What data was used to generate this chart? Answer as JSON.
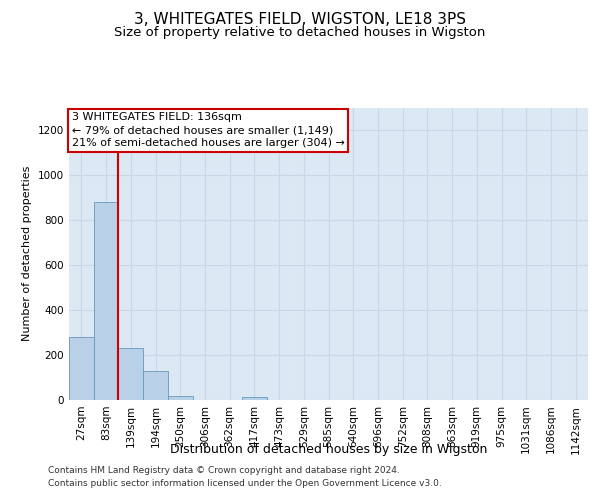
{
  "title": "3, WHITEGATES FIELD, WIGSTON, LE18 3PS",
  "subtitle": "Size of property relative to detached houses in Wigston",
  "xlabel": "Distribution of detached houses by size in Wigston",
  "ylabel": "Number of detached properties",
  "bar_values": [
    280,
    880,
    230,
    130,
    20,
    0,
    0,
    15,
    0,
    0,
    0,
    0,
    0,
    0,
    0,
    0,
    0,
    0,
    0,
    0,
    0
  ],
  "bin_labels": [
    "27sqm",
    "83sqm",
    "139sqm",
    "194sqm",
    "250sqm",
    "306sqm",
    "362sqm",
    "417sqm",
    "473sqm",
    "529sqm",
    "585sqm",
    "640sqm",
    "696sqm",
    "752sqm",
    "808sqm",
    "863sqm",
    "919sqm",
    "975sqm",
    "1031sqm",
    "1086sqm",
    "1142sqm"
  ],
  "bar_color": "#b8d0e8",
  "bar_edge_color": "#6699bb",
  "plot_bg_color": "#dce8f4",
  "grid_color": "#c8d8e8",
  "red_line_x": 1.5,
  "ylim": [
    0,
    1300
  ],
  "yticks": [
    0,
    200,
    400,
    600,
    800,
    1000,
    1200
  ],
  "annotation_text": "3 WHITEGATES FIELD: 136sqm\n← 79% of detached houses are smaller (1,149)\n21% of semi-detached houses are larger (304) →",
  "annotation_box_color": "#cc0000",
  "footer_line1": "Contains HM Land Registry data © Crown copyright and database right 2024.",
  "footer_line2": "Contains public sector information licensed under the Open Government Licence v3.0.",
  "title_fontsize": 11,
  "subtitle_fontsize": 9.5,
  "xlabel_fontsize": 9,
  "ylabel_fontsize": 8,
  "tick_fontsize": 7.5,
  "annotation_fontsize": 8,
  "footer_fontsize": 6.5
}
